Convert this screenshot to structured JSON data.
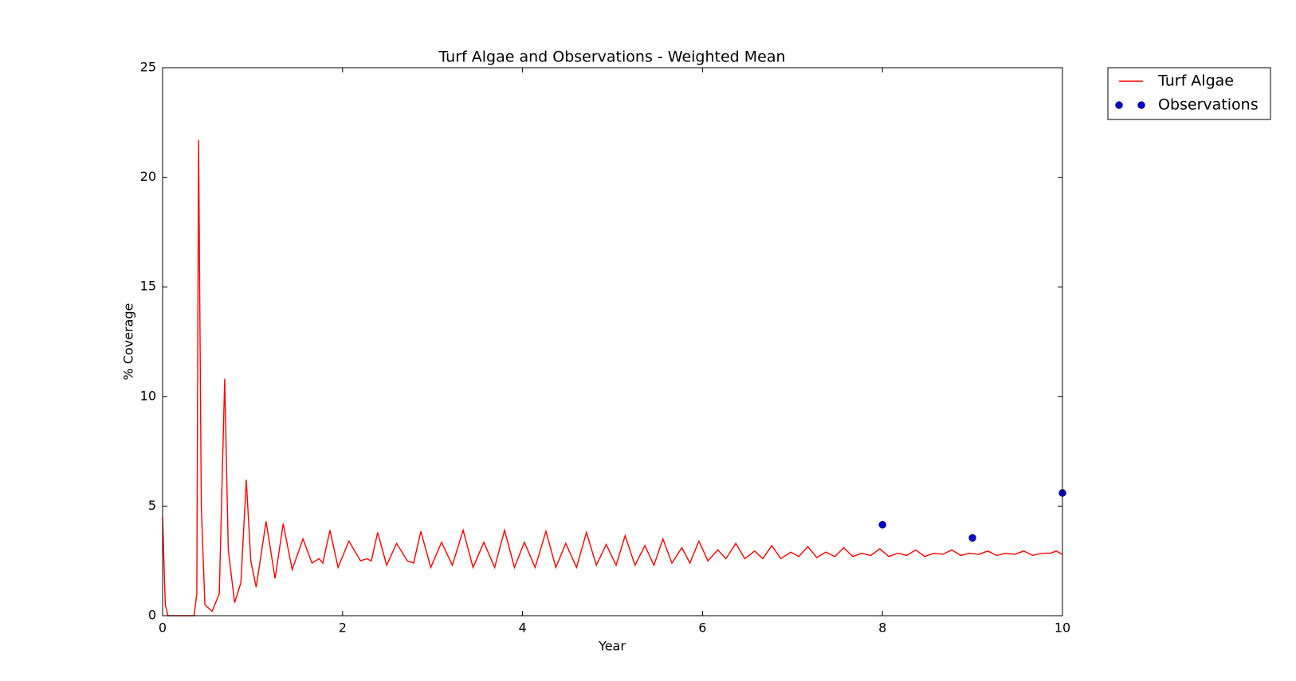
{
  "chart_data": {
    "type": "line",
    "title": "Turf Algae and Observations - Weighted Mean",
    "x_label": "Year",
    "y_label": "% Coverage",
    "xlim": [
      0,
      10
    ],
    "ylim": [
      0,
      25
    ],
    "xticks": [
      0,
      2,
      4,
      6,
      8,
      10
    ],
    "yticks": [
      0,
      5,
      10,
      15,
      20,
      25
    ],
    "legend": "outside upper right",
    "series": [
      {
        "name": "Turf Algae",
        "color": "#ff0000",
        "style": "line",
        "x": [
          0,
          0.03,
          0.06,
          0.35,
          0.38,
          0.4,
          0.43,
          0.47,
          0.55,
          0.63,
          0.69,
          0.73,
          0.8,
          0.87,
          0.93,
          0.98,
          1.04,
          1.15,
          1.25,
          1.34,
          1.44,
          1.56,
          1.66,
          1.74,
          1.78,
          1.86,
          1.95,
          2.07,
          2.2,
          2.27,
          2.32,
          2.39,
          2.49,
          2.6,
          2.72,
          2.79,
          2.87,
          2.98,
          3.1,
          3.22,
          3.34,
          3.45,
          3.57,
          3.69,
          3.8,
          3.91,
          4.02,
          4.14,
          4.26,
          4.37,
          4.48,
          4.6,
          4.71,
          4.82,
          4.93,
          5.04,
          5.14,
          5.25,
          5.36,
          5.46,
          5.56,
          5.66,
          5.77,
          5.86,
          5.96,
          6.06,
          6.17,
          6.26,
          6.37,
          6.47,
          6.58,
          6.67,
          6.77,
          6.87,
          6.98,
          7.07,
          7.17,
          7.27,
          7.37,
          7.47,
          7.57,
          7.67,
          7.77,
          7.87,
          7.97,
          8.07,
          8.17,
          8.27,
          8.37,
          8.47,
          8.57,
          8.67,
          8.77,
          8.87,
          8.97,
          9.07,
          9.17,
          9.27,
          9.37,
          9.47,
          9.57,
          9.67,
          9.77,
          9.87,
          9.93,
          10
        ],
        "values": [
          4.5,
          0.5,
          0,
          0,
          1,
          21.7,
          5,
          0.5,
          0.2,
          1,
          10.8,
          3,
          0.6,
          1.5,
          6.2,
          2.5,
          1.3,
          4.3,
          1.7,
          4.2,
          2.1,
          3.5,
          2.4,
          2.6,
          2.4,
          3.9,
          2.2,
          3.4,
          2.5,
          2.6,
          2.5,
          3.8,
          2.3,
          3.3,
          2.5,
          2.4,
          3.85,
          2.2,
          3.35,
          2.3,
          3.9,
          2.2,
          3.35,
          2.2,
          3.9,
          2.2,
          3.35,
          2.2,
          3.85,
          2.2,
          3.3,
          2.2,
          3.8,
          2.3,
          3.25,
          2.3,
          3.65,
          2.3,
          3.2,
          2.3,
          3.5,
          2.4,
          3.1,
          2.4,
          3.4,
          2.5,
          3.0,
          2.6,
          3.3,
          2.6,
          2.95,
          2.6,
          3.2,
          2.6,
          2.9,
          2.7,
          3.15,
          2.65,
          2.9,
          2.7,
          3.1,
          2.7,
          2.85,
          2.75,
          3.05,
          2.7,
          2.85,
          2.75,
          3.0,
          2.7,
          2.85,
          2.8,
          3.0,
          2.75,
          2.85,
          2.8,
          2.95,
          2.75,
          2.85,
          2.8,
          2.95,
          2.75,
          2.85,
          2.85,
          2.95,
          2.8
        ]
      },
      {
        "name": "Observations",
        "color": "#0000cc",
        "style": "marker",
        "x": [
          8,
          9,
          10
        ],
        "values": [
          4.15,
          3.55,
          5.6
        ]
      }
    ]
  }
}
